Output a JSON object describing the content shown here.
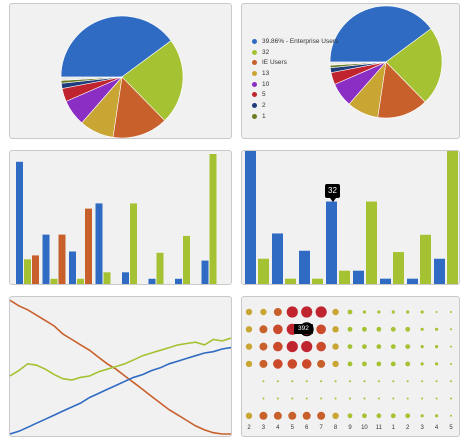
{
  "colors": {
    "blue": "#2f6bc2",
    "green": "#a4c232",
    "orange": "#c8602c",
    "gold": "#c9a534",
    "purple": "#8a2ec4",
    "red": "#c0252f",
    "navy": "#1f3c7a",
    "olive": "#6b7d22",
    "panel_bg": "#f1f1f1"
  },
  "pie": {
    "slices": [
      {
        "value": 39.86,
        "color": "#2f6bc2"
      },
      {
        "value": 22.8,
        "color": "#a4c232"
      },
      {
        "value": 14.7,
        "color": "#c8602c"
      },
      {
        "value": 9.1,
        "color": "#c9a534"
      },
      {
        "value": 7.0,
        "color": "#8a2ec4"
      },
      {
        "value": 3.5,
        "color": "#c0252f"
      },
      {
        "value": 1.4,
        "color": "#1f3c7a"
      },
      {
        "value": 0.74,
        "color": "#6b7d22"
      },
      {
        "value": 0.9,
        "color": "#e8e8e8"
      }
    ]
  },
  "legend": {
    "items": [
      {
        "label": "39.86% - Enterprise Users",
        "color": "#2f6bc2"
      },
      {
        "label": "32",
        "color": "#a4c232"
      },
      {
        "label": "IE Users",
        "color": "#c8602c"
      },
      {
        "label": "13",
        "color": "#c9a534"
      },
      {
        "label": "10",
        "color": "#8a2ec4"
      },
      {
        "label": "5",
        "color": "#c0252f"
      },
      {
        "label": "2",
        "color": "#1f3c7a"
      },
      {
        "label": "1",
        "color": "#6b7d22"
      }
    ]
  },
  "bars_left": {
    "max": 100,
    "groups": [
      [
        {
          "v": 94,
          "c": "#2f6bc2"
        },
        {
          "v": 19,
          "c": "#a4c232"
        },
        {
          "v": 22,
          "c": "#c8602c"
        }
      ],
      [
        {
          "v": 38,
          "c": "#2f6bc2"
        },
        {
          "v": 4,
          "c": "#a4c232"
        },
        {
          "v": 38,
          "c": "#c8602c"
        }
      ],
      [
        {
          "v": 25,
          "c": "#2f6bc2"
        },
        {
          "v": 4,
          "c": "#a4c232"
        },
        {
          "v": 58,
          "c": "#c8602c"
        }
      ],
      [
        {
          "v": 62,
          "c": "#2f6bc2"
        },
        {
          "v": 9,
          "c": "#a4c232"
        }
      ],
      [
        {
          "v": 9,
          "c": "#2f6bc2"
        },
        {
          "v": 62,
          "c": "#a4c232"
        }
      ],
      [
        {
          "v": 4,
          "c": "#2f6bc2"
        },
        {
          "v": 24,
          "c": "#a4c232"
        }
      ],
      [
        {
          "v": 4,
          "c": "#2f6bc2"
        },
        {
          "v": 37,
          "c": "#a4c232"
        }
      ],
      [
        {
          "v": 18,
          "c": "#2f6bc2"
        },
        {
          "v": 100,
          "c": "#a4c232"
        }
      ]
    ]
  },
  "bars_right": {
    "max": 100,
    "tooltip": "32",
    "groups": [
      [
        {
          "v": 100,
          "c": "#2f6bc2"
        },
        {
          "v": 19,
          "c": "#a4c232"
        }
      ],
      [
        {
          "v": 38,
          "c": "#2f6bc2"
        },
        {
          "v": 4,
          "c": "#a4c232"
        }
      ],
      [
        {
          "v": 25,
          "c": "#2f6bc2"
        },
        {
          "v": 4,
          "c": "#a4c232"
        }
      ],
      [
        {
          "v": 62,
          "c": "#2f6bc2"
        },
        {
          "v": 10,
          "c": "#a4c232"
        }
      ],
      [
        {
          "v": 10,
          "c": "#2f6bc2"
        },
        {
          "v": 62,
          "c": "#a4c232"
        }
      ],
      [
        {
          "v": 4,
          "c": "#2f6bc2"
        },
        {
          "v": 24,
          "c": "#a4c232"
        }
      ],
      [
        {
          "v": 4,
          "c": "#2f6bc2"
        },
        {
          "v": 37,
          "c": "#a4c232"
        }
      ],
      [
        {
          "v": 19,
          "c": "#2f6bc2"
        },
        {
          "v": 100,
          "c": "#a4c232"
        }
      ]
    ]
  },
  "lines": {
    "max": 100,
    "series": [
      {
        "color": "#c8602c",
        "values": [
          99,
          95,
          92,
          88,
          84,
          80,
          74,
          70,
          66,
          62,
          57,
          52,
          48,
          43,
          38,
          33,
          28,
          23,
          18,
          14,
          10,
          6,
          3,
          1,
          0,
          0
        ]
      },
      {
        "color": "#a4c232",
        "values": [
          43,
          47,
          52,
          51,
          48,
          44,
          41,
          40,
          42,
          43,
          46,
          48,
          50,
          52,
          55,
          58,
          60,
          62,
          64,
          66,
          67,
          68,
          66,
          70,
          69,
          71
        ]
      },
      {
        "color": "#2f6bc2",
        "values": [
          0,
          2,
          5,
          8,
          11,
          14,
          17,
          20,
          23,
          27,
          30,
          33,
          36,
          39,
          42,
          44,
          47,
          49,
          52,
          54,
          56,
          58,
          60,
          61,
          63,
          64
        ]
      }
    ]
  },
  "bubbles": {
    "tooltip": "392",
    "x_ticks": [
      "2",
      "3",
      "4",
      "5",
      "6",
      "7",
      "8",
      "9",
      "10",
      "11",
      "1",
      "2",
      "3",
      "4",
      "5"
    ],
    "rows": [
      [
        4,
        4,
        5,
        7,
        7,
        7,
        4,
        3,
        2,
        2,
        2,
        2,
        2,
        1,
        1
      ],
      [
        4,
        5,
        6,
        7,
        8,
        6,
        4,
        3,
        3,
        3,
        3,
        3,
        2,
        2,
        1
      ],
      [
        4,
        5,
        6,
        7,
        7,
        6,
        4,
        3,
        3,
        3,
        3,
        3,
        2,
        2,
        1
      ],
      [
        4,
        5,
        6,
        6,
        6,
        5,
        4,
        3,
        3,
        3,
        3,
        3,
        2,
        2,
        1
      ],
      [
        0,
        1,
        1,
        1,
        1,
        1,
        1,
        1,
        1,
        1,
        1,
        1,
        1,
        1,
        1
      ],
      [
        0,
        1,
        1,
        1,
        1,
        1,
        1,
        1,
        1,
        1,
        1,
        1,
        1,
        1,
        1
      ],
      [
        4,
        5,
        5,
        5,
        5,
        5,
        4,
        3,
        3,
        3,
        3,
        3,
        2,
        2,
        1
      ]
    ]
  }
}
